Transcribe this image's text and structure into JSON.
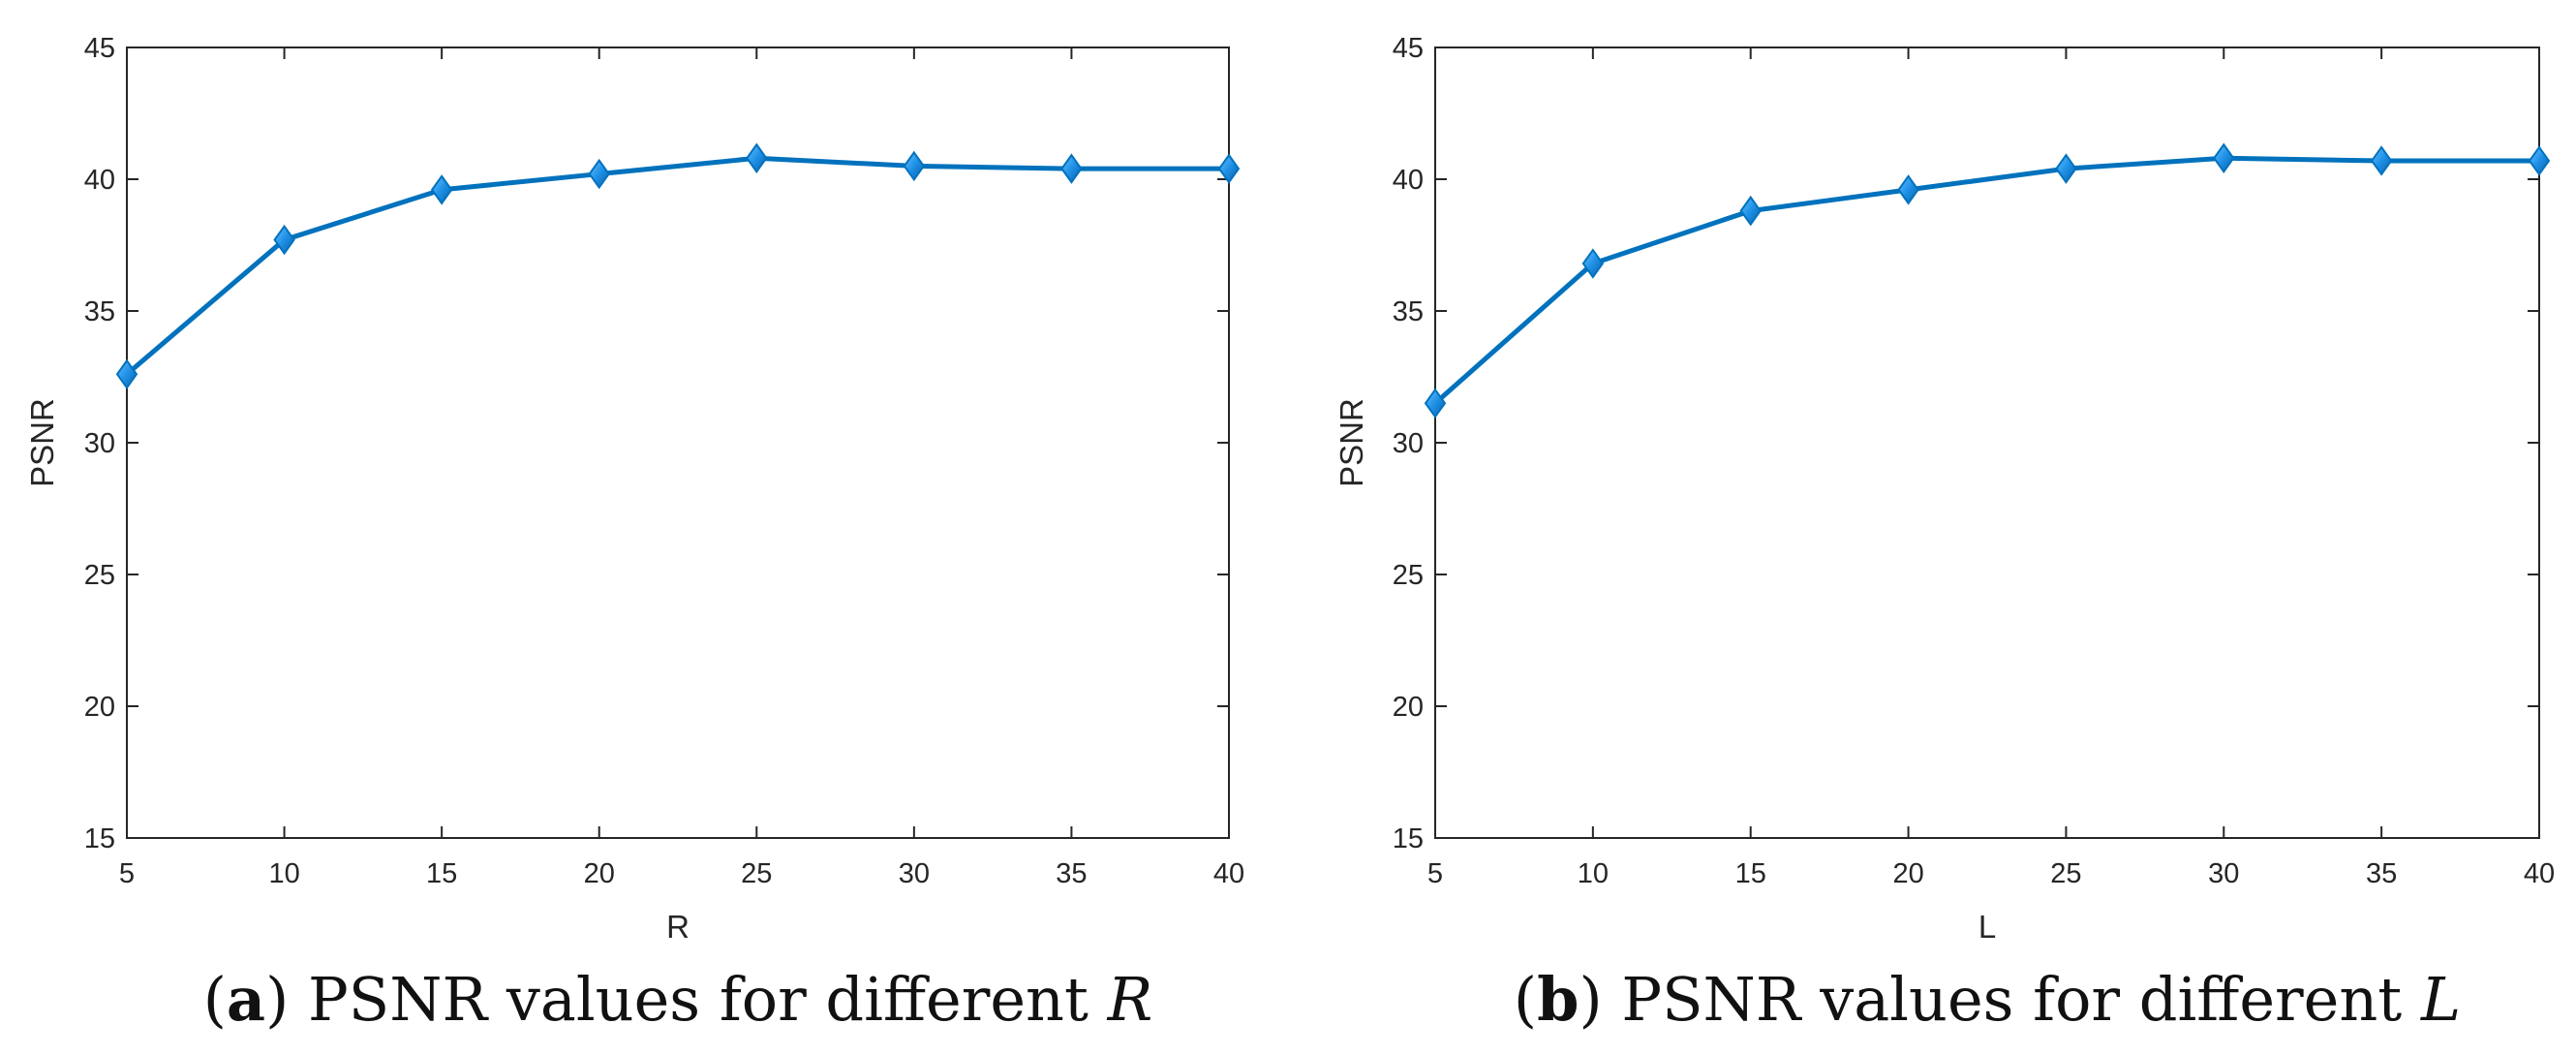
{
  "chart_data": [
    {
      "type": "line",
      "panel_tag": "a",
      "caption": "PSNR values for different",
      "caption_variable": "R",
      "xlabel": "R",
      "ylabel": "PSNR",
      "x": [
        5,
        10,
        15,
        20,
        25,
        30,
        35,
        40
      ],
      "series": [
        {
          "name": "PSNR",
          "values": [
            32.6,
            37.7,
            39.6,
            40.2,
            40.8,
            40.5,
            40.4,
            40.4
          ]
        }
      ],
      "xlim": [
        5,
        40
      ],
      "ylim": [
        15,
        45
      ],
      "xticks": [
        5,
        10,
        15,
        20,
        25,
        30,
        35,
        40
      ],
      "yticks": [
        15,
        20,
        25,
        30,
        35,
        40,
        45
      ],
      "marker": "diamond",
      "grid": false,
      "line_color": "#0072BD",
      "marker_fill": "#1E90E6"
    },
    {
      "type": "line",
      "panel_tag": "b",
      "caption": "PSNR values for different",
      "caption_variable": "L",
      "xlabel": "L",
      "ylabel": "PSNR",
      "x": [
        5,
        10,
        15,
        20,
        25,
        30,
        35,
        40
      ],
      "series": [
        {
          "name": "PSNR",
          "values": [
            31.5,
            36.8,
            38.8,
            39.6,
            40.4,
            40.8,
            40.7,
            40.7
          ]
        }
      ],
      "xlim": [
        5,
        40
      ],
      "ylim": [
        15,
        45
      ],
      "xticks": [
        5,
        10,
        15,
        20,
        25,
        30,
        35,
        40
      ],
      "yticks": [
        15,
        20,
        25,
        30,
        35,
        40,
        45
      ],
      "marker": "diamond",
      "grid": false,
      "line_color": "#0072BD",
      "marker_fill": "#1E90E6"
    }
  ]
}
